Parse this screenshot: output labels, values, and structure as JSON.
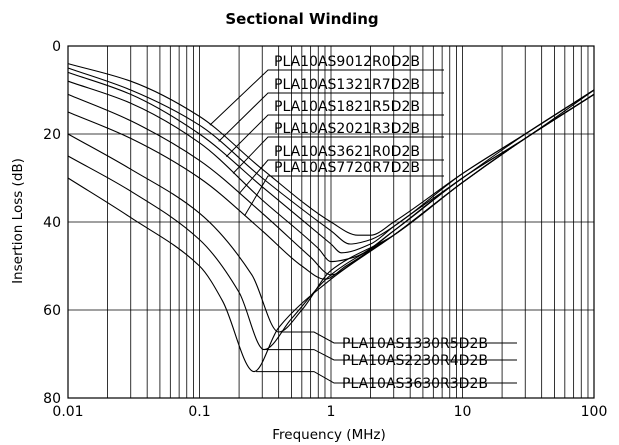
{
  "chart_data": {
    "type": "line",
    "title": "Sectional Winding",
    "xlabel": "Frequency (MHz)",
    "ylabel": "Insertion Loss (dB)",
    "x_scale": "log",
    "xlim": [
      0.01,
      100
    ],
    "ylim": [
      0,
      80
    ],
    "y_inverted": true,
    "grid": true,
    "x_tick_labels": [
      "0.01",
      "0.1",
      "1",
      "10",
      "100"
    ],
    "y_tick_labels": [
      "0",
      "20",
      "40",
      "60",
      "80"
    ],
    "series": [
      {
        "name": "PLA10AS9012R0D2B",
        "x": [
          0.01,
          0.03,
          0.1,
          0.3,
          1,
          1.6,
          2,
          3,
          10,
          30,
          100
        ],
        "y": [
          4,
          8,
          16,
          28,
          40,
          43,
          43,
          40,
          29,
          20,
          10
        ]
      },
      {
        "name": "PLA10AS1321R7D2B",
        "x": [
          0.01,
          0.03,
          0.1,
          0.3,
          1,
          1.4,
          2,
          3,
          10,
          30,
          100
        ],
        "y": [
          5,
          10,
          18,
          30,
          42,
          45,
          44,
          41,
          29,
          20,
          10
        ]
      },
      {
        "name": "PLA10AS1821R5D2B",
        "x": [
          0.01,
          0.03,
          0.1,
          0.3,
          1,
          1.2,
          2,
          3,
          10,
          30,
          100
        ],
        "y": [
          6,
          11,
          20,
          32,
          45,
          47,
          45,
          41,
          30,
          20,
          10
        ]
      },
      {
        "name": "PLA10AS2021R3D2B",
        "x": [
          0.01,
          0.03,
          0.1,
          0.3,
          0.8,
          1,
          1.5,
          3,
          10,
          30,
          100
        ],
        "y": [
          8,
          13,
          22,
          35,
          46,
          49,
          48,
          42,
          30,
          21,
          10
        ]
      },
      {
        "name": "PLA10AS3621R0D2B",
        "x": [
          0.01,
          0.03,
          0.1,
          0.3,
          0.7,
          1,
          1.5,
          3,
          10,
          30,
          100
        ],
        "y": [
          11,
          17,
          26,
          38,
          48,
          52,
          49,
          42,
          30,
          21,
          11
        ]
      },
      {
        "name": "PLA10AS7720R7D2B",
        "x": [
          0.01,
          0.03,
          0.1,
          0.3,
          0.6,
          0.9,
          1.3,
          3,
          10,
          30,
          100
        ],
        "y": [
          15,
          21,
          30,
          42,
          50,
          53,
          50,
          43,
          31,
          21,
          11
        ]
      },
      {
        "name": "PLA10AS1330R5D2B",
        "x": [
          0.01,
          0.03,
          0.1,
          0.25,
          0.4,
          0.6,
          1,
          3,
          10,
          30,
          100
        ],
        "y": [
          20,
          28,
          38,
          52,
          65,
          60,
          51,
          43,
          31,
          21,
          11
        ]
      },
      {
        "name": "PLA10AS2230R4D2B",
        "x": [
          0.01,
          0.03,
          0.1,
          0.2,
          0.31,
          0.5,
          1,
          3,
          10,
          30,
          100
        ],
        "y": [
          25,
          33,
          44,
          56,
          69,
          62,
          52,
          43,
          31,
          21,
          11
        ]
      },
      {
        "name": "PLA10AS3630R3D2B",
        "x": [
          0.01,
          0.03,
          0.1,
          0.15,
          0.26,
          0.4,
          1,
          3,
          10,
          30,
          100
        ],
        "y": [
          30,
          39,
          50,
          58,
          74,
          64,
          53,
          43,
          31,
          21,
          11
        ]
      }
    ]
  }
}
